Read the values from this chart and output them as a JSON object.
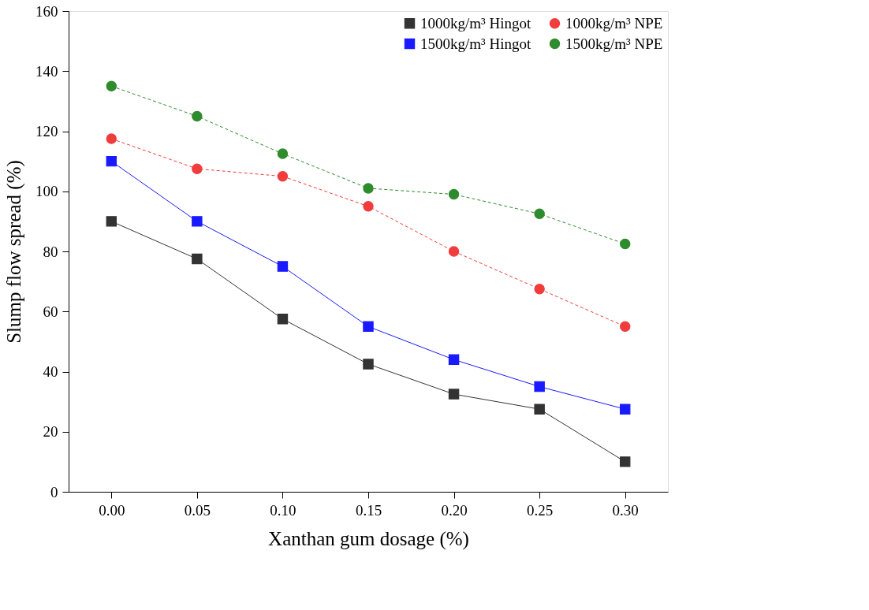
{
  "chart_data": {
    "type": "line",
    "xlabel": "Xanthan gum dosage (%)",
    "ylabel": "Slump flow spread (%)",
    "x": [
      0.0,
      0.05,
      0.1,
      0.15,
      0.2,
      0.25,
      0.3
    ],
    "xlim": [
      -0.025,
      0.325
    ],
    "xticks": [
      {
        "value": 0,
        "label": "0.00"
      },
      0.05,
      {
        "value": 0.1,
        "label": "0.10"
      },
      0.15,
      {
        "value": 0.2,
        "label": "0.20"
      },
      0.25,
      {
        "value": 0.3,
        "label": "0.30"
      }
    ],
    "ylim": [
      0,
      160
    ],
    "yticks": [
      0,
      20,
      40,
      60,
      80,
      100,
      120,
      140,
      160
    ],
    "grid": false,
    "legend": "top right",
    "series": [
      {
        "name": "1000kg/m³ Hingot",
        "color": "#333333",
        "marker": "square",
        "line_style": "solid",
        "values": [
          90,
          77.5,
          57.5,
          42.5,
          32.5,
          27.5,
          10
        ]
      },
      {
        "name": "1500kg/m³ Hingot",
        "color": "#1a1aff",
        "marker": "square",
        "line_style": "solid",
        "values": [
          110,
          90,
          75,
          55,
          44,
          35,
          27.5
        ]
      },
      {
        "name": "1000kg/m³ NPE",
        "color": "#f03c3c",
        "marker": "circle",
        "line_style": "dashed",
        "values": [
          117.5,
          107.5,
          105,
          95,
          80,
          67.5,
          55
        ]
      },
      {
        "name": "1500kg/m³ NPE",
        "color": "#2e8b2e",
        "marker": "circle",
        "line_style": "dashed",
        "values": [
          135,
          125,
          112.5,
          101,
          99,
          92.5,
          82.5
        ]
      }
    ]
  }
}
